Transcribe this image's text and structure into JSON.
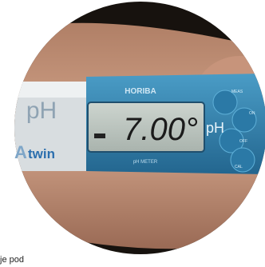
{
  "photo": {
    "brand": "HORIBA",
    "left_label": "pH",
    "logo": "twin",
    "display_value": "7.00°",
    "display_unit": "pH",
    "panel_label": "pH METER",
    "buttons": [
      "MEAS",
      "ON",
      "OFF",
      "CAL"
    ]
  },
  "caption": "je pod"
}
